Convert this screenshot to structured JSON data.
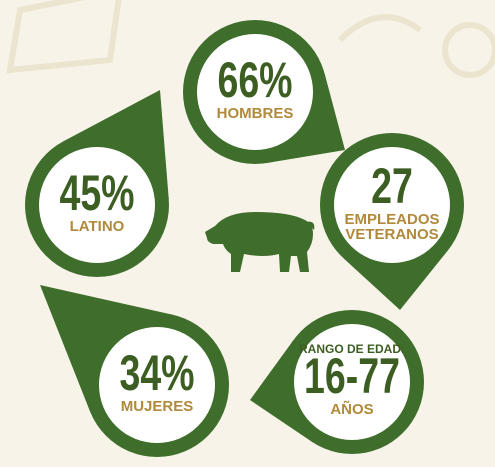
{
  "nodes": [
    {
      "value": "66%",
      "label": [
        "HOMBRES"
      ]
    },
    {
      "value": "27",
      "label": [
        "EMPLEADOS",
        "VETERANOS"
      ]
    },
    {
      "heading": "RANGO DE EDAD:",
      "value": "16-77",
      "label": [
        "AÑOS"
      ]
    },
    {
      "value": "34%",
      "label": [
        "MUJERES"
      ]
    },
    {
      "value": "45%",
      "label": [
        "LATINO"
      ]
    }
  ]
}
